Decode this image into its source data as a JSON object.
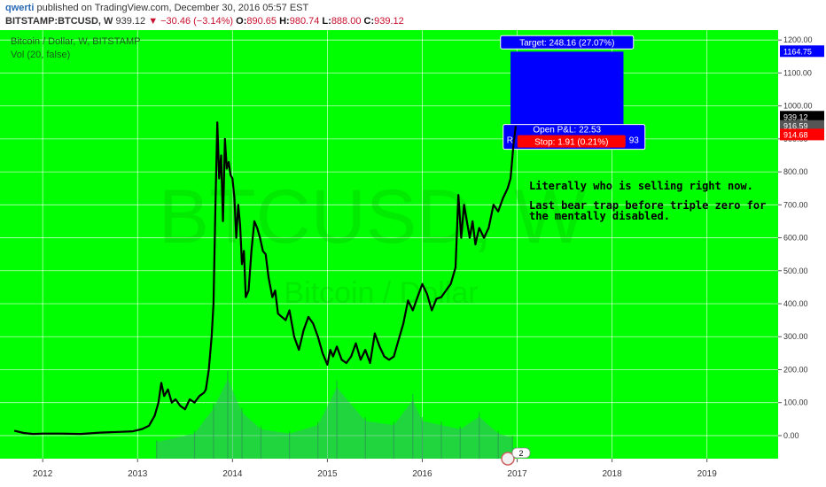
{
  "header": {
    "author": "qwerti",
    "published": " published on TradingView.com, December 30, 2016 05:57 EST",
    "symbol": "BITSTAMP:BTCUSD, W",
    "last": "939.12",
    "change": "▼ −30.46 (−3.14%)",
    "o_label": "O:",
    "o_val": "890.65",
    "h_label": "H:",
    "h_val": "980.74",
    "l_label": "L:",
    "l_val": "888.00",
    "c_label": "C:",
    "c_val": "939.12"
  },
  "legend": {
    "main": "Bitcoin / Dollar, W, BITSTAMP",
    "volume": "Vol (20, false)"
  },
  "watermark": {
    "symbol": "BTCUSD, W",
    "name": "Bitcoin / Dollar"
  },
  "annotations": {
    "note_line1": "Literally who is selling right now.",
    "note_line2": "Last bear trap before triple zero for",
    "note_line3": "the mentally disabled.",
    "target": "Target: 248.16 (27.07%)",
    "stop": "Stop: 1.91 (0.21%)",
    "open_pnl": "Open P&L: 22.53",
    "risk": "Ri",
    "risk_tail": "93",
    "event_badge": "2"
  },
  "price_labels": {
    "target": "1164.75",
    "last": "939.12",
    "entry": "916.59",
    "stop": "914.68"
  },
  "colors": {
    "background": "#00ff00",
    "line": "#000000",
    "volume": "#3cb371",
    "target": "#0000ff",
    "stop": "#ff0000",
    "axis_bg": "#ffffff"
  },
  "chart_data": {
    "type": "line",
    "title": "Bitcoin / Dollar, W, BITSTAMP",
    "xlabel": "",
    "ylabel": "",
    "xlim": [
      2011.55,
      2019.75
    ],
    "ylim": [
      -70,
      1230
    ],
    "grid": true,
    "x_ticks": [
      "2012",
      "2013",
      "2014",
      "2015",
      "2016",
      "2017",
      "2018",
      "2019"
    ],
    "y_ticks": [
      "0.00",
      "100.00",
      "200.00",
      "300.00",
      "400.00",
      "500.00",
      "600.00",
      "700.00",
      "800.00",
      "900.00",
      "1000.00",
      "1100.00",
      "1200.00"
    ],
    "series": [
      {
        "x": [
          2011.7,
          2011.8,
          2011.9,
          2012.0,
          2012.2,
          2012.4,
          2012.6,
          2012.8,
          2012.95,
          2013.05,
          2013.12,
          2013.18,
          2013.22,
          2013.25,
          2013.28,
          2013.32,
          2013.36,
          2013.4,
          2013.45,
          2013.5,
          2013.55,
          2013.6,
          2013.65,
          2013.7,
          2013.72,
          2013.75,
          2013.78,
          2013.8,
          2013.82,
          2013.84,
          2013.86,
          2013.88,
          2013.9,
          2013.92,
          2013.94,
          2013.96,
          2013.98,
          2014.0,
          2014.02,
          2014.04,
          2014.06,
          2014.08,
          2014.1,
          2014.12,
          2014.14,
          2014.17,
          2014.2,
          2014.23,
          2014.26,
          2014.29,
          2014.32,
          2014.35,
          2014.38,
          2014.42,
          2014.45,
          2014.48,
          2014.52,
          2014.56,
          2014.6,
          2014.65,
          2014.7,
          2014.75,
          2014.8,
          2014.85,
          2014.9,
          2014.95,
          2015.0,
          2015.03,
          2015.06,
          2015.1,
          2015.15,
          2015.2,
          2015.25,
          2015.3,
          2015.35,
          2015.4,
          2015.45,
          2015.5,
          2015.55,
          2015.6,
          2015.65,
          2015.7,
          2015.75,
          2015.8,
          2015.85,
          2015.9,
          2015.95,
          2016.0,
          2016.05,
          2016.1,
          2016.15,
          2016.2,
          2016.25,
          2016.3,
          2016.35,
          2016.38,
          2016.41,
          2016.44,
          2016.47,
          2016.5,
          2016.53,
          2016.56,
          2016.6,
          2016.65,
          2016.7,
          2016.75,
          2016.8,
          2016.85,
          2016.9,
          2016.93,
          2016.96,
          2016.985
        ],
        "y": [
          15,
          8,
          5,
          6,
          6,
          5,
          9,
          11,
          13,
          20,
          30,
          60,
          100,
          160,
          120,
          140,
          100,
          110,
          90,
          80,
          110,
          100,
          120,
          130,
          140,
          200,
          300,
          400,
          700,
          950,
          780,
          850,
          650,
          900,
          810,
          830,
          790,
          780,
          720,
          600,
          700,
          640,
          520,
          560,
          420,
          440,
          560,
          650,
          630,
          600,
          560,
          550,
          480,
          420,
          440,
          370,
          360,
          350,
          380,
          300,
          260,
          320,
          360,
          340,
          300,
          250,
          215,
          260,
          240,
          270,
          230,
          220,
          240,
          280,
          230,
          260,
          220,
          310,
          270,
          240,
          230,
          240,
          290,
          340,
          410,
          380,
          420,
          460,
          430,
          380,
          415,
          420,
          440,
          460,
          510,
          730,
          600,
          700,
          650,
          600,
          650,
          580,
          630,
          600,
          630,
          700,
          680,
          720,
          750,
          780,
          880,
          939.12
        ]
      }
    ],
    "volume": {
      "x": [
        2013.2,
        2013.6,
        2013.8,
        2013.95,
        2014.1,
        2014.3,
        2014.6,
        2014.9,
        2015.1,
        2015.4,
        2015.7,
        2015.9,
        2016.0,
        2016.2,
        2016.4,
        2016.6,
        2016.8,
        2016.95
      ],
      "y": [
        40,
        60,
        120,
        190,
        110,
        70,
        60,
        80,
        170,
        90,
        80,
        140,
        90,
        80,
        70,
        100,
        60,
        50
      ]
    },
    "long_position": {
      "entry": 916.59,
      "target": 1164.75,
      "stop": 914.68,
      "x_start": 2016.93,
      "x_end": 2018.12
    }
  }
}
